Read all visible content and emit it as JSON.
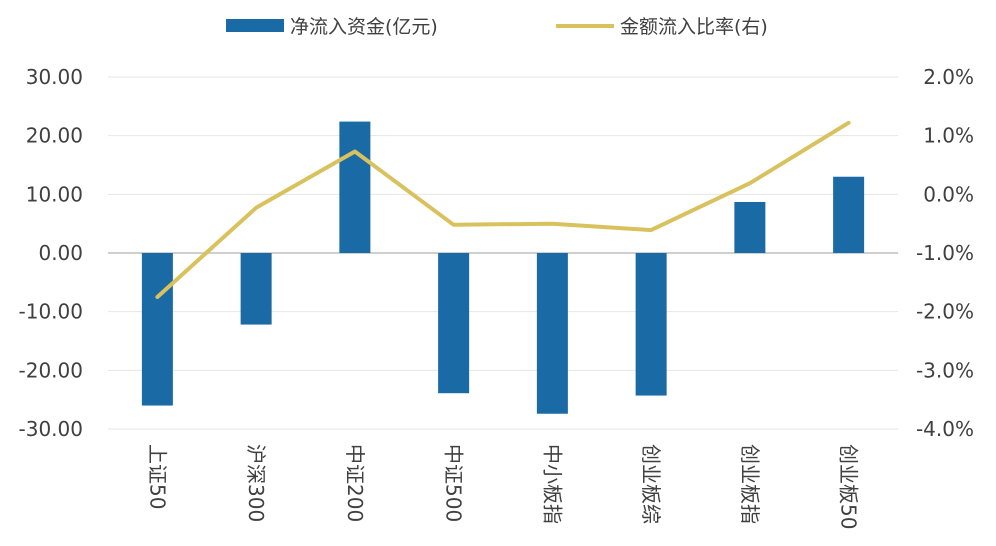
{
  "chart_data": {
    "type": "bar+line",
    "categories": [
      "上证50",
      "沪深300",
      "中证200",
      "中证500",
      "中小板指",
      "创业板综",
      "创业板指",
      "创业板50"
    ],
    "series": [
      {
        "name": "净流入资金(亿元)",
        "type": "bar",
        "axis": "left",
        "color": "#1a6aa6",
        "values": [
          -26.0,
          -12.2,
          22.4,
          -23.9,
          -27.4,
          -24.3,
          8.7,
          13.0
        ]
      },
      {
        "name": "金额流入比率(右)",
        "type": "line",
        "axis": "right",
        "color": "#d9c25e",
        "values": [
          -1.75,
          -0.23,
          0.73,
          -0.52,
          -0.5,
          -0.61,
          0.19,
          1.22
        ]
      }
    ],
    "y_left": {
      "range": [
        -30,
        30
      ],
      "ticks": [
        30,
        20,
        10,
        0,
        -10,
        -20,
        -30
      ],
      "tick_labels": [
        "30.00",
        "20.00",
        "10.00",
        "0.00",
        "-10.00",
        "-20.00",
        "-30.00"
      ]
    },
    "y_right": {
      "range": [
        -4.0,
        2.0
      ],
      "ticks": [
        2,
        1,
        0,
        -1,
        -2,
        -3,
        -4
      ],
      "tick_labels": [
        "2.0%",
        "1.0%",
        "0.0%",
        "-1.0%",
        "-2.0%",
        "-3.0%",
        "-4.0%"
      ]
    },
    "legend_position": "top-center",
    "grid": true
  }
}
